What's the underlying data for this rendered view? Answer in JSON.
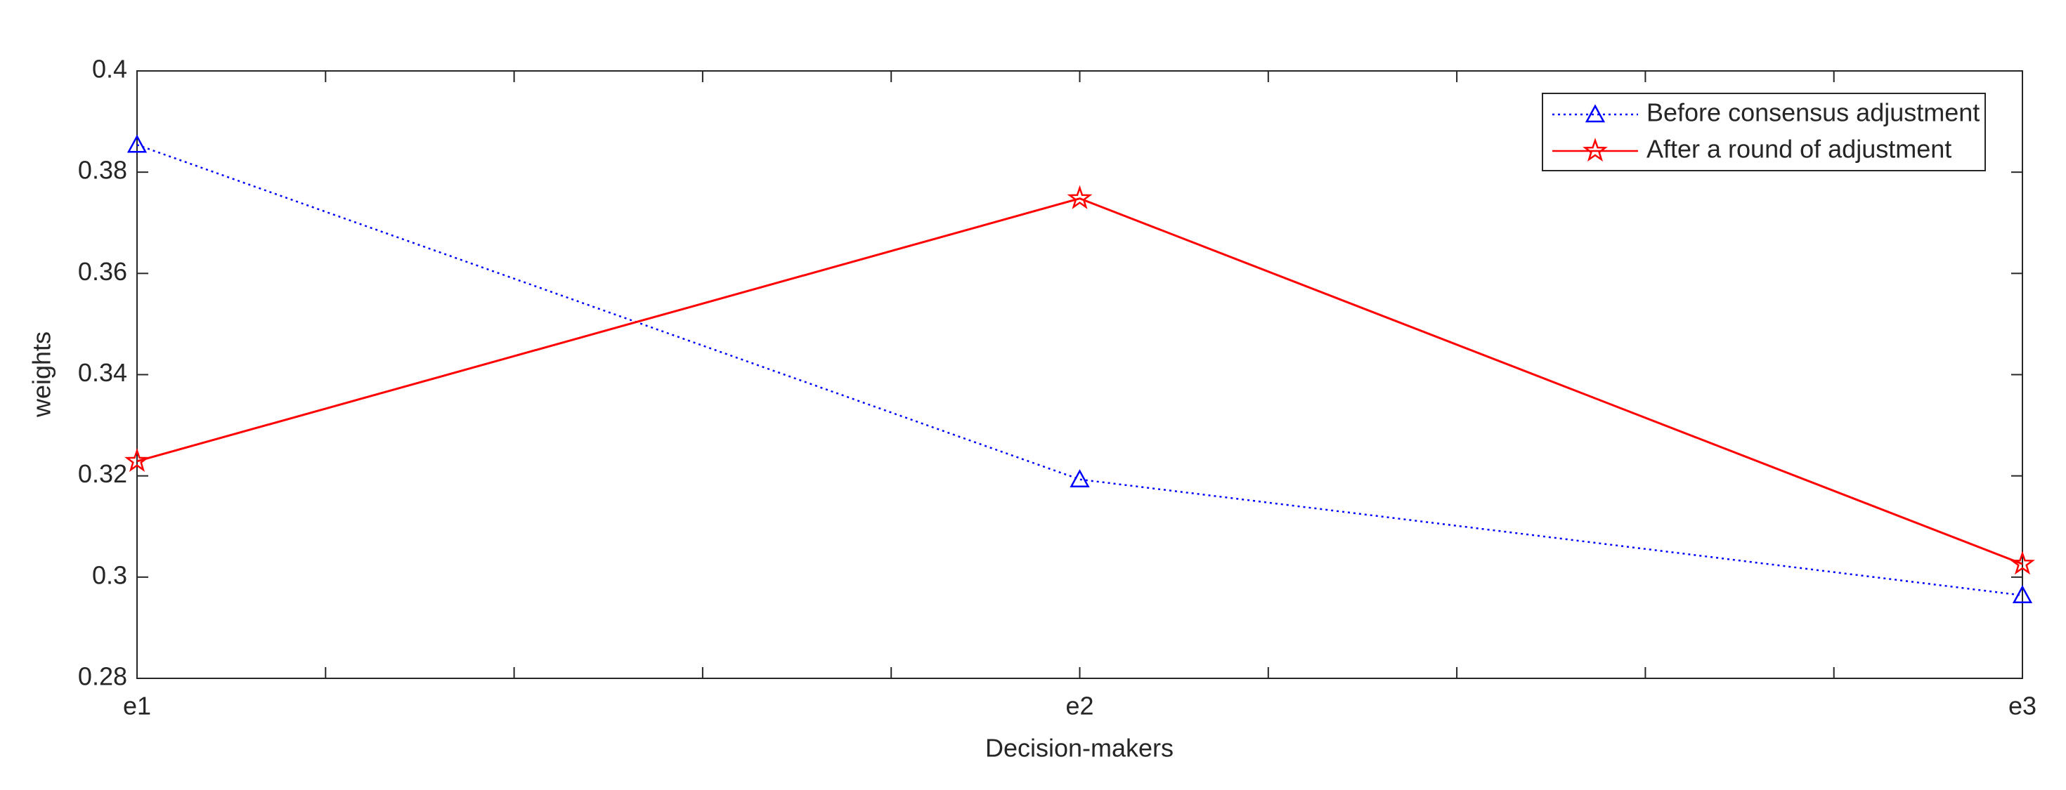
{
  "chart_data": {
    "type": "line",
    "x_label": "Decision-makers",
    "y_label": "weights",
    "categories": [
      "e1",
      "e2",
      "e3"
    ],
    "series": [
      {
        "name": "Before consensus adjustment",
        "color": "#0000ff",
        "values": [
          0.3854,
          0.3193,
          0.2964
        ]
      },
      {
        "name": "After a round of adjustment",
        "color": "#ff0000",
        "values": [
          0.3229,
          0.3748,
          0.3026
        ]
      }
    ],
    "ylim": [
      0.28,
      0.4
    ],
    "yticks": [
      0.28,
      0.3,
      0.32,
      0.34,
      0.36,
      0.38,
      0.4
    ],
    "legend": "upper right"
  }
}
